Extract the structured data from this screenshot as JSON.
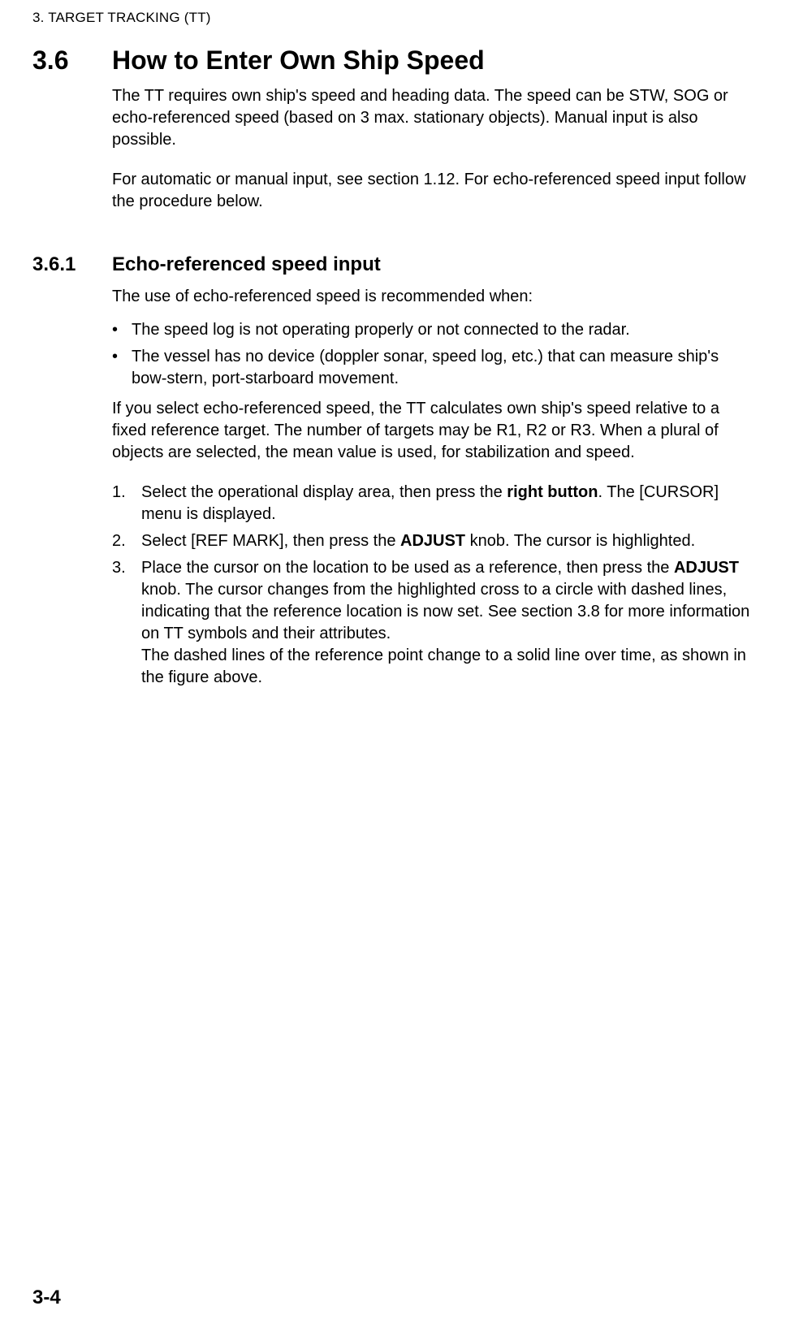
{
  "header": {
    "running": "3.  TARGET TRACKING (TT)"
  },
  "section": {
    "num": "3.6",
    "title": "How to Enter Own Ship Speed",
    "p1": "The TT requires own ship's speed and heading data. The speed can be STW, SOG or echo-referenced speed (based on 3 max. stationary objects). Manual input is also possible.",
    "p2": "For automatic or manual input, see section 1.12. For echo-referenced speed input follow the procedure below."
  },
  "subsection": {
    "num": "3.6.1",
    "title": "Echo-referenced speed input",
    "intro": "The use of echo-referenced speed is recommended when:",
    "bullets": [
      "The speed log is not operating properly or not connected to the radar.",
      "The vessel has no device (doppler sonar, speed log, etc.) that can measure ship's bow-stern, port-starboard movement."
    ],
    "p_after_bullets": "If you select echo-referenced speed, the TT calculates own ship's speed relative to a fixed reference target. The number of targets may be R1, R2 or R3. When a plural of objects are selected, the mean value is used, for stabilization and speed.",
    "steps": [
      {
        "label": "1.",
        "pre": "Select the operational display area, then press the ",
        "bold": "right button",
        "post": ". The [CURSOR] menu is displayed."
      },
      {
        "label": "2.",
        "pre": "Select [REF MARK], then press the ",
        "bold": "ADJUST",
        "post": " knob. The cursor is highlighted."
      },
      {
        "label": "3.",
        "pre": "Place the cursor on the location to be used as a reference, then press the ",
        "bold": "ADJUST",
        "post": " knob. The cursor changes from the highlighted cross to a circle with dashed lines, indicating that the reference location is now set. See section 3.8 for more information on TT symbols and their attributes.",
        "extra": "The dashed lines of the reference point change to a solid line over time, as shown in the figure above."
      }
    ]
  },
  "footer": {
    "page_number": "3-4"
  }
}
